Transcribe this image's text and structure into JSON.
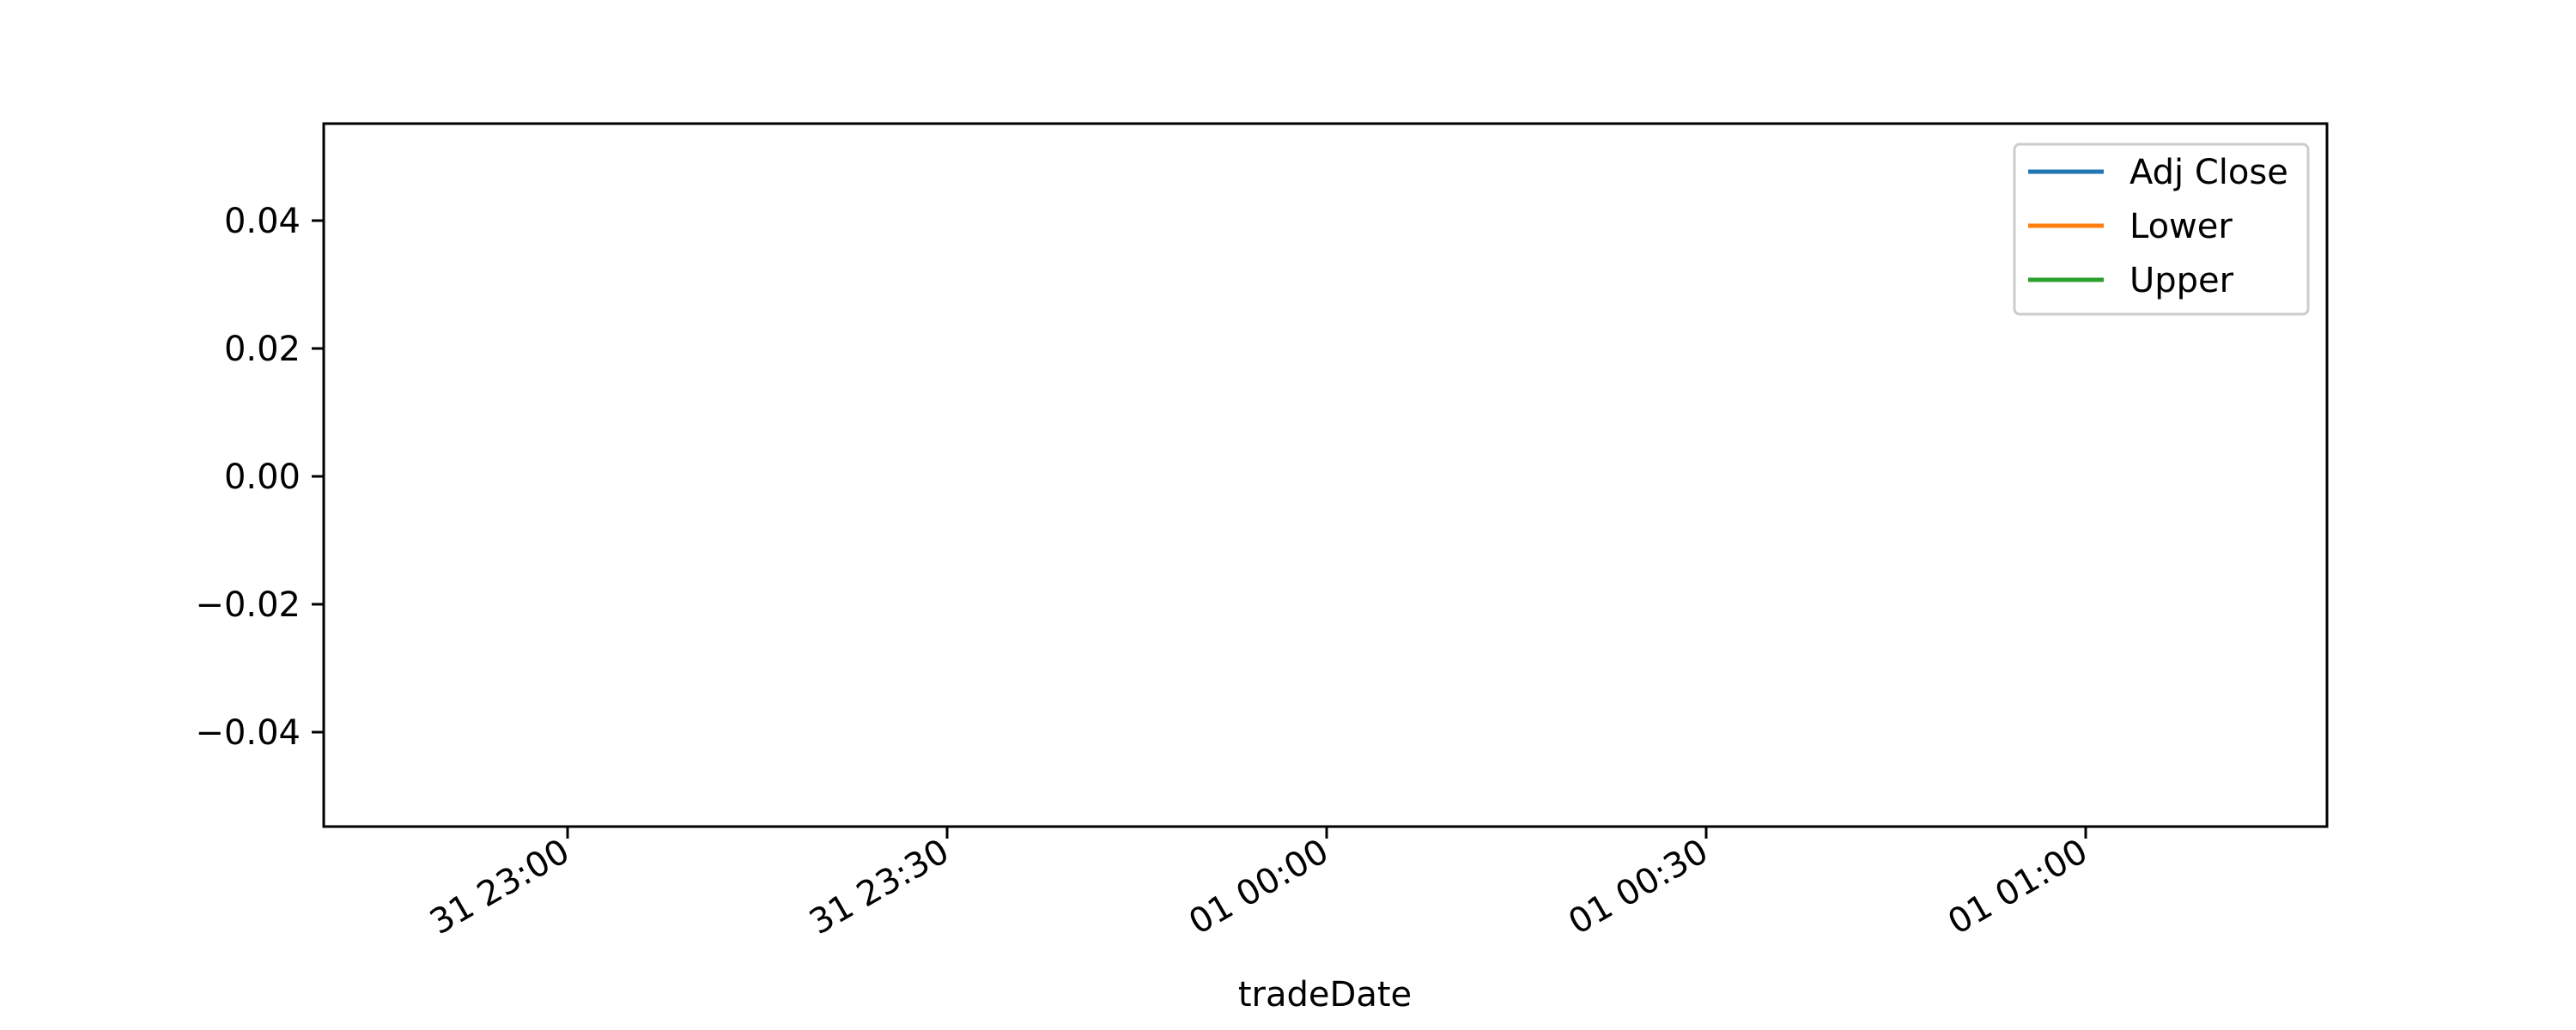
{
  "chart_data": {
    "type": "line",
    "title": "",
    "xlabel": "tradeDate",
    "ylabel": "",
    "x_ticks": [
      "31 23:00",
      "31 23:30",
      "01 00:00",
      "01 00:30",
      "01 01:00"
    ],
    "y_ticks": [
      "0.04",
      "0.02",
      "0.00",
      "−0.02",
      "−0.04"
    ],
    "y_tick_values": [
      0.04,
      0.02,
      0.0,
      -0.02,
      -0.04
    ],
    "ylim": [
      -0.055,
      0.055
    ],
    "grid": false,
    "legend_position": "top-right",
    "series": [
      {
        "name": "Adj Close",
        "color": "#1f77b4",
        "x": [],
        "values": []
      },
      {
        "name": "Lower",
        "color": "#ff7f0e",
        "x": [],
        "values": []
      },
      {
        "name": "Upper",
        "color": "#2ca02c",
        "x": [],
        "values": []
      }
    ]
  }
}
